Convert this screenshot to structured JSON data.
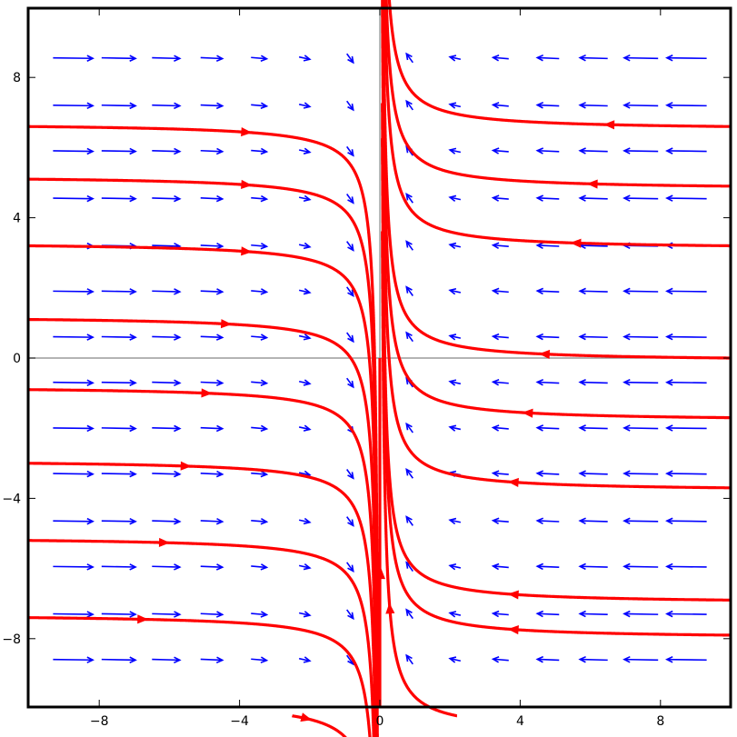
{
  "chart_data": {
    "type": "vector_field",
    "title": "",
    "xlabel": "",
    "ylabel": "",
    "xlim": [
      -10,
      10
    ],
    "ylim": [
      -10,
      10
    ],
    "x_ticks": [
      -8,
      -4,
      0,
      4,
      8
    ],
    "y_ticks": [
      -8,
      -4,
      0,
      4,
      8
    ],
    "x_tick_labels": [
      "−8",
      "−4",
      "0",
      "4",
      "8"
    ],
    "y_tick_labels": [
      "−8",
      "−4",
      "0",
      "4",
      "8"
    ],
    "axes_lines": true,
    "grid": false,
    "field": {
      "description": "dx/dt = -x, dy/dt = 1/x (approx.)",
      "arrow_color": "#0000ff",
      "grid_x": [
        -8.75,
        -7.45,
        -6.1,
        -4.8,
        -3.45,
        -2.15,
        -0.85,
        0.85,
        2.15,
        3.45,
        4.8,
        6.1,
        7.45,
        8.75
      ],
      "grid_y": [
        8.55,
        7.2,
        5.9,
        4.55,
        3.2,
        1.9,
        0.6,
        -0.7,
        -2.0,
        -3.3,
        -4.65,
        -5.95,
        -7.3,
        -8.6
      ]
    },
    "streamlines": {
      "color": "#ff0000",
      "left_start_y": [
        6.6,
        5.1,
        3.2,
        1.1,
        -0.9,
        -3.0,
        -5.2,
        -7.4
      ],
      "right_start_y": [
        6.6,
        4.9,
        3.2,
        0.0,
        -1.7,
        -3.7,
        -6.9,
        -7.9
      ],
      "vertical_start_x": [
        -2.5,
        0.0,
        2.2
      ]
    }
  }
}
